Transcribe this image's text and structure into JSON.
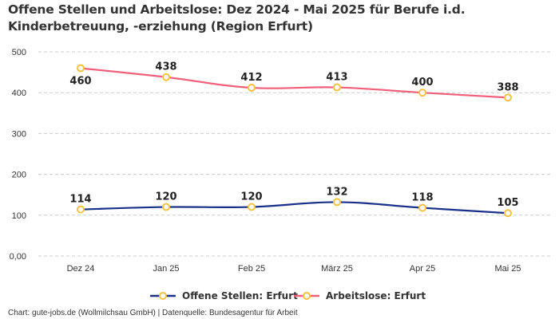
{
  "chart_data": {
    "type": "line",
    "title": "Offene Stellen und Arbeitslose: Dez 2024 - Mai 2025 für Berufe i.d. Kinderbetreuung, -erziehung (Region Erfurt)",
    "xlabel": "",
    "ylabel": "",
    "categories": [
      "Dez 24",
      "Jan 25",
      "Feb 25",
      "März 25",
      "Apr 25",
      "Mai 25"
    ],
    "ylim": [
      0,
      500
    ],
    "yticks": [
      0,
      100,
      200,
      300,
      400,
      500
    ],
    "ytick_labels": [
      "0,00",
      "100",
      "200",
      "300",
      "400",
      "500"
    ],
    "grid": true,
    "legend_position": "bottom",
    "series": [
      {
        "name": "Offene Stellen: Erfurt",
        "color": "#1a2f8a",
        "marker_color": "#f5c242",
        "values": [
          114,
          120,
          120,
          132,
          118,
          105
        ],
        "label_position": "above"
      },
      {
        "name": "Arbeitslose: Erfurt",
        "color": "#f0607a",
        "marker_color": "#f5c242",
        "values": [
          460,
          438,
          412,
          413,
          400,
          388
        ],
        "label_position": "above-except-first"
      }
    ],
    "source": "Chart: gute-jobs.de (Wollmilchsau GmbH) | Datenquelle: Bundesagentur für Arbeit"
  }
}
